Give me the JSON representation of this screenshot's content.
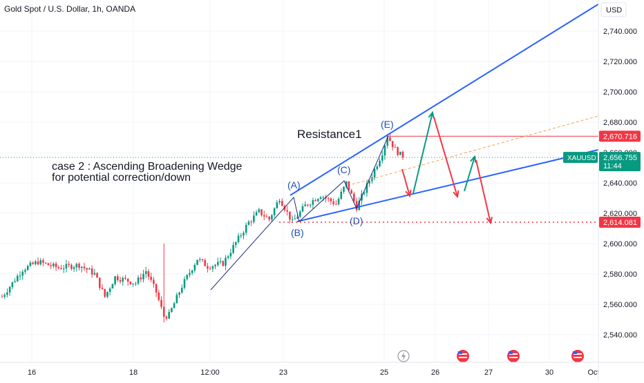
{
  "header": {
    "title": "Gold Spot / U.S. Dollar, 1h, OANDA",
    "currency_button": "USD"
  },
  "colors": {
    "up": "#089981",
    "down": "#f23645",
    "trendline": "#2962ff",
    "ghost_up": "#089981",
    "ghost_down": "#f23645",
    "forecast": "#f7a14a",
    "support": "#f23645",
    "resistance": "#f23645",
    "wave": "#1e2a78",
    "text": "#131722",
    "grid": "#f0f3fa"
  },
  "annotations": {
    "case_line1": "case 2 : Ascending Broadening Wedge",
    "case_line2": "for potential correction/down",
    "resistance_label": "Resistance1",
    "points": {
      "A": "(A)",
      "B": "(B)",
      "C": "(C)",
      "D": "(D)",
      "E": "(E)"
    }
  },
  "price_labels": {
    "resistance": "2,670.716",
    "current_symbol": "XAUUSD",
    "current_price": "2,656.755",
    "countdown": "11:44",
    "support": "2,614.081"
  },
  "chart_data": {
    "type": "candlestick",
    "title": "Gold Spot / U.S. Dollar, 1h, OANDA",
    "symbol": "XAUUSD",
    "interval": "1h",
    "y_axis": {
      "range": [
        2530,
        2757
      ],
      "ticks": [
        "2,540.000",
        "2,560.000",
        "2,580.000",
        "2,600.000",
        "2,620.000",
        "2,640.000",
        "2,660.000",
        "2,680.000",
        "2,700.000",
        "2,720.000",
        "2,740.000"
      ],
      "tick_values": [
        2540,
        2560,
        2580,
        2600,
        2620,
        2640,
        2660,
        2680,
        2700,
        2720,
        2740
      ]
    },
    "x_axis": {
      "ticks": [
        "16",
        "18",
        "12:00",
        "23",
        "25",
        "26",
        "27",
        "30",
        "Oct"
      ]
    },
    "horizontal_levels": [
      {
        "name": "Resistance1",
        "value": 2670.716
      },
      {
        "name": "support",
        "value": 2614.081
      }
    ],
    "last_price": 2656.755,
    "swing_points": [
      {
        "label": "(A)",
        "value": 2632
      },
      {
        "label": "(B)",
        "value": 2613
      },
      {
        "label": "(C)",
        "value": 2640
      },
      {
        "label": "(D)",
        "value": 2624
      },
      {
        "label": "(E)",
        "value": 2671
      }
    ],
    "path_keypoints": [
      [
        0,
        2565
      ],
      [
        8,
        2583
      ],
      [
        14,
        2588
      ],
      [
        22,
        2584
      ],
      [
        30,
        2586
      ],
      [
        36,
        2580
      ],
      [
        40,
        2565
      ],
      [
        44,
        2578
      ],
      [
        52,
        2574
      ],
      [
        56,
        2582
      ],
      [
        60,
        2568
      ],
      [
        63,
        2552
      ],
      [
        65,
        2553
      ],
      [
        70,
        2572
      ],
      [
        76,
        2590
      ],
      [
        80,
        2585
      ],
      [
        86,
        2587
      ],
      [
        90,
        2598
      ],
      [
        96,
        2614
      ],
      [
        100,
        2621
      ],
      [
        104,
        2616
      ],
      [
        108,
        2630
      ],
      [
        113,
        2614
      ],
      [
        118,
        2625
      ],
      [
        124,
        2632
      ],
      [
        130,
        2626
      ],
      [
        134,
        2640
      ],
      [
        138,
        2624
      ],
      [
        144,
        2645
      ],
      [
        148,
        2660
      ],
      [
        150,
        2671
      ],
      [
        153,
        2662
      ],
      [
        156,
        2656.8
      ]
    ],
    "candle_count": 157
  }
}
